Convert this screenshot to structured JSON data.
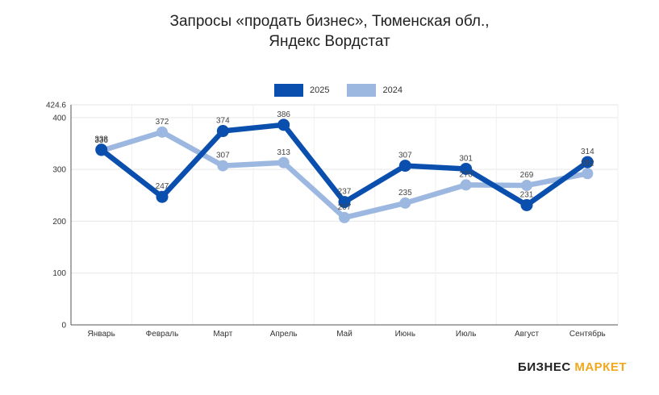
{
  "title_line1": "Запросы «продать бизнес», Тюменская обл.,",
  "title_line2": "Яндекс Вордстат",
  "brand": {
    "part1": "БИЗНЕС",
    "part2": "МАРКЕТ"
  },
  "colors": {
    "s2025": "#0a4fae",
    "s2024": "#9db8e0",
    "grid": "#e6e6e6",
    "brand_accent": "#f0a81c"
  },
  "chart_data": {
    "type": "line",
    "title": "Запросы «продать бизнес», Тюменская обл., Яндекс Вордстат",
    "categories": [
      "Январь",
      "Февраль",
      "Март",
      "Апрель",
      "Май",
      "Июнь",
      "Июль",
      "Август",
      "Сентябрь"
    ],
    "series": [
      {
        "name": "2025",
        "values": [
          338,
          247,
          374,
          386,
          237,
          307,
          301,
          231,
          314
        ]
      },
      {
        "name": "2024",
        "values": [
          336,
          372,
          307,
          313,
          207,
          235,
          270,
          269,
          292
        ]
      }
    ],
    "ylim": [
      0,
      424.6
    ],
    "yticks": [
      0,
      100,
      200,
      300,
      400
    ],
    "ymax_label": "424.6",
    "legend": "top-center",
    "grid": true
  }
}
